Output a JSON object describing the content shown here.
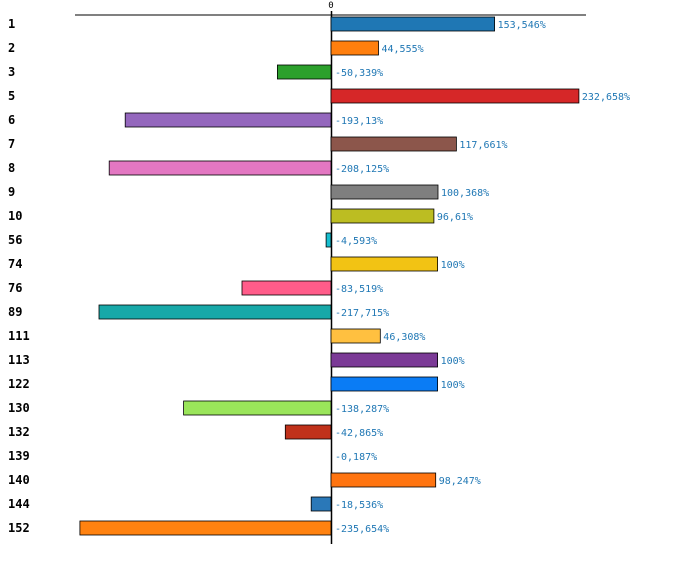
{
  "chart_data": {
    "type": "bar",
    "orientation": "horizontal",
    "zero_tick_label": "0",
    "categories": [
      "1",
      "2",
      "3",
      "5",
      "6",
      "7",
      "8",
      "9",
      "10",
      "56",
      "74",
      "76",
      "89",
      "111",
      "113",
      "122",
      "130",
      "132",
      "139",
      "140",
      "144",
      "152"
    ],
    "values": [
      153.546,
      44.555,
      -50.339,
      232.658,
      -193.13,
      117.661,
      -208.125,
      100.368,
      96.61,
      -4.593,
      100,
      -83.519,
      -217.715,
      46.308,
      100,
      100,
      -138.287,
      -42.865,
      -0.187,
      98.247,
      -18.536,
      -235.654
    ],
    "value_labels": [
      "153,546%",
      "44,555%",
      "-50,339%",
      "232,658%",
      "-193,13%",
      "117,661%",
      "-208,125%",
      "100,368%",
      "96,61%",
      "-4,593%",
      "100%",
      "-83,519%",
      "-217,715%",
      "46,308%",
      "100%",
      "100%",
      "-138,287%",
      "-42,865%",
      "-0,187%",
      "98,247%",
      "-18,536%",
      "-235,654%"
    ],
    "colors": [
      "#1f77b4",
      "#ff7f0e",
      "#2ca02c",
      "#d62728",
      "#9467bd",
      "#8c564b",
      "#e377c2",
      "#7f7f7f",
      "#bcbd22",
      "#17becf",
      "#f2c314",
      "#ff5c8a",
      "#17a8a8",
      "#ffc040",
      "#7b3a96",
      "#0a7cf5",
      "#9ae55a",
      "#c0311a",
      "#888888",
      "#ff7410",
      "#2a78b8",
      "#ff8210"
    ],
    "xlim": [
      -240,
      240
    ],
    "title": "",
    "xlabel": "",
    "ylabel": ""
  }
}
